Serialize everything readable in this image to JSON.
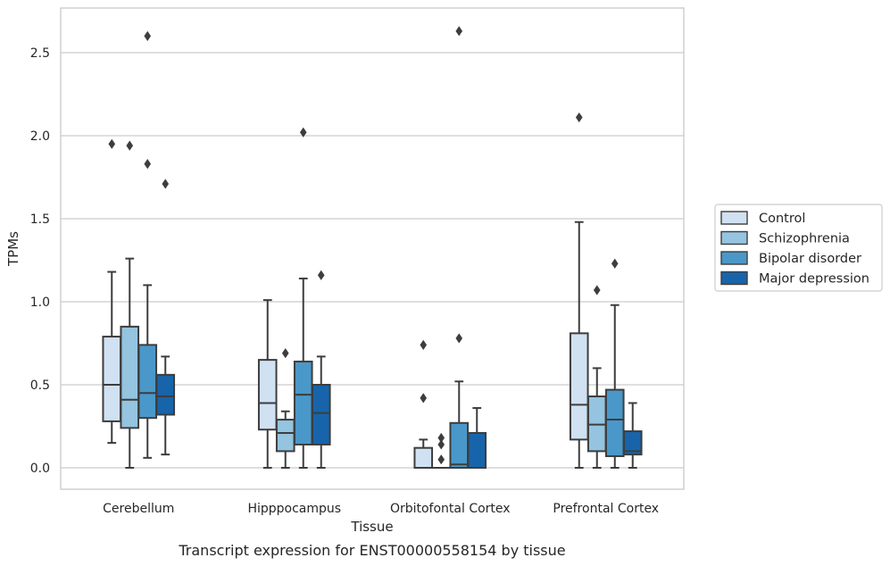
{
  "chart_data": {
    "type": "box",
    "title": "",
    "caption": "Transcript expression for ENST00000558154 by tissue",
    "xlabel": "Tissue",
    "ylabel": "TPMs",
    "ylim": [
      -0.13,
      2.77
    ],
    "yticks": [
      0.0,
      0.5,
      1.0,
      1.5,
      2.0,
      2.5
    ],
    "ytick_labels": [
      "0.0",
      "0.5",
      "1.0",
      "1.5",
      "2.0",
      "2.5"
    ],
    "grid": "horizontal",
    "legend_position": "right",
    "categories": [
      "Cerebellum",
      "Hipppocampus",
      "Orbitofontal Cortex",
      "Prefrontal Cortex"
    ],
    "series": [
      {
        "name": "Control",
        "color": "#d0e1f2",
        "boxes": [
          {
            "whislo": 0.15,
            "q1": 0.28,
            "med": 0.5,
            "q3": 0.79,
            "whishi": 1.18,
            "fliers": [
              1.95
            ]
          },
          {
            "whislo": 0.0,
            "q1": 0.23,
            "med": 0.39,
            "q3": 0.65,
            "whishi": 1.01,
            "fliers": []
          },
          {
            "whislo": 0.0,
            "q1": 0.0,
            "med": 0.0,
            "q3": 0.12,
            "whishi": 0.17,
            "fliers": [
              0.42,
              0.74
            ]
          },
          {
            "whislo": 0.0,
            "q1": 0.17,
            "med": 0.38,
            "q3": 0.81,
            "whishi": 1.48,
            "fliers": [
              2.11
            ]
          }
        ]
      },
      {
        "name": "Schizophrenia",
        "color": "#94c4df",
        "boxes": [
          {
            "whislo": 0.0,
            "q1": 0.24,
            "med": 0.41,
            "q3": 0.85,
            "whishi": 1.26,
            "fliers": [
              1.94
            ]
          },
          {
            "whislo": 0.0,
            "q1": 0.1,
            "med": 0.21,
            "q3": 0.29,
            "whishi": 0.34,
            "fliers": [
              0.69
            ]
          },
          {
            "whislo": 0.0,
            "q1": 0.0,
            "med": 0.0,
            "q3": 0.0,
            "whishi": 0.0,
            "fliers": [
              0.05,
              0.14,
              0.18
            ]
          },
          {
            "whislo": 0.0,
            "q1": 0.1,
            "med": 0.26,
            "q3": 0.43,
            "whishi": 0.6,
            "fliers": [
              1.07
            ]
          }
        ]
      },
      {
        "name": "Bipolar disorder",
        "color": "#4a98c9",
        "boxes": [
          {
            "whislo": 0.06,
            "q1": 0.3,
            "med": 0.45,
            "q3": 0.74,
            "whishi": 1.1,
            "fliers": [
              1.83,
              2.6
            ]
          },
          {
            "whislo": 0.0,
            "q1": 0.14,
            "med": 0.44,
            "q3": 0.64,
            "whishi": 1.14,
            "fliers": [
              2.02
            ]
          },
          {
            "whislo": 0.0,
            "q1": 0.0,
            "med": 0.02,
            "q3": 0.27,
            "whishi": 0.52,
            "fliers": [
              0.78,
              2.63
            ]
          },
          {
            "whislo": 0.0,
            "q1": 0.07,
            "med": 0.29,
            "q3": 0.47,
            "whishi": 0.98,
            "fliers": [
              1.23
            ]
          }
        ]
      },
      {
        "name": "Major depression",
        "color": "#1764ab",
        "boxes": [
          {
            "whislo": 0.08,
            "q1": 0.32,
            "med": 0.43,
            "q3": 0.56,
            "whishi": 0.67,
            "fliers": [
              1.71
            ]
          },
          {
            "whislo": 0.0,
            "q1": 0.14,
            "med": 0.33,
            "q3": 0.5,
            "whishi": 0.67,
            "fliers": [
              1.16
            ]
          },
          {
            "whislo": 0.0,
            "q1": 0.0,
            "med": 0.0,
            "q3": 0.21,
            "whishi": 0.36,
            "fliers": []
          },
          {
            "whislo": 0.0,
            "q1": 0.08,
            "med": 0.1,
            "q3": 0.22,
            "whishi": 0.39,
            "fliers": []
          }
        ]
      }
    ]
  }
}
